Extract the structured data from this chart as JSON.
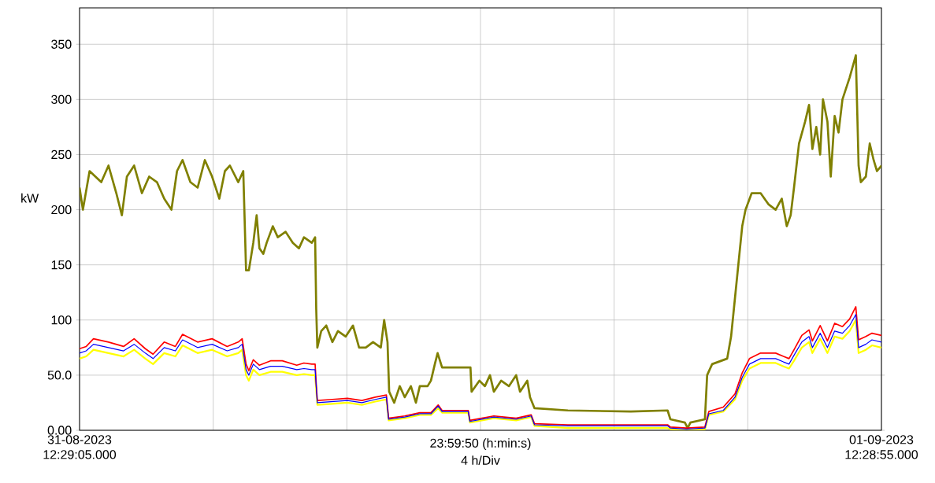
{
  "chart_data": {
    "type": "line",
    "ylabel": "kW",
    "xlabel": "4 h/Div",
    "xlim": [
      "2023-08-31T12:29",
      "2023-09-01T12:29"
    ],
    "xticks": [
      {
        "value": "2023-08-31T12:29",
        "label": "31-08-2023 12:29:05.000"
      },
      {
        "value": "2023-08-31T16:29",
        "label": null
      },
      {
        "value": "2023-08-31T20:29",
        "label": null
      },
      {
        "value": "2023-09-01T00:29",
        "label": "23:59:50 (h:min:s)"
      },
      {
        "value": "2023-09-01T04:29",
        "label": null
      },
      {
        "value": "2023-09-01T08:29",
        "label": null
      },
      {
        "value": "2023-09-01T12:29",
        "label": "01-09-2023 12:28:55.000"
      }
    ],
    "ylim": [
      0,
      383
    ],
    "yticks": [
      {
        "value": 0,
        "label": "0.00"
      },
      {
        "value": 50,
        "label": "50.0"
      },
      {
        "value": 100,
        "label": "100"
      },
      {
        "value": 150,
        "label": "150"
      },
      {
        "value": 200,
        "label": "200"
      },
      {
        "value": 250,
        "label": "250"
      },
      {
        "value": 300,
        "label": "300"
      },
      {
        "value": 350,
        "label": "350"
      }
    ],
    "grid": true,
    "marker": "none",
    "line_style": "solid",
    "x": [
      "2023-08-31T12:29",
      "2023-08-31T12:41",
      "2023-08-31T12:54",
      "2023-08-31T13:21",
      "2023-08-31T13:48",
      "2023-08-31T14:07",
      "2023-08-31T14:27",
      "2023-08-31T14:41",
      "2023-08-31T15:01",
      "2023-08-31T15:21",
      "2023-08-31T15:34",
      "2023-08-31T16:01",
      "2023-08-31T16:27",
      "2023-08-31T16:54",
      "2023-08-31T17:14",
      "2023-08-31T17:21",
      "2023-08-31T17:28",
      "2023-08-31T17:33",
      "2023-08-31T17:41",
      "2023-08-31T17:52",
      "2023-08-31T18:12",
      "2023-08-31T18:33",
      "2023-08-31T18:59",
      "2023-08-31T19:12",
      "2023-08-31T19:26",
      "2023-08-31T19:32",
      "2023-08-31T19:34",
      "2023-08-31T19:36",
      "2023-08-31T20:03",
      "2023-08-31T20:30",
      "2023-08-31T20:56",
      "2023-08-31T21:20",
      "2023-08-31T21:40",
      "2023-08-31T21:44",
      "2023-08-31T22:13",
      "2023-08-31T22:40",
      "2023-08-31T23:00",
      "2023-08-31T23:13",
      "2023-08-31T23:20",
      "2023-09-01T00:07",
      "2023-09-01T00:10",
      "2023-09-01T00:53",
      "2023-09-01T01:33",
      "2023-09-01T02:00",
      "2023-09-01T02:06",
      "2023-09-01T03:06",
      "2023-09-01T04:59",
      "2023-09-01T06:05",
      "2023-09-01T06:10",
      "2023-09-01T06:39",
      "2023-09-01T07:12",
      "2023-09-01T07:19",
      "2023-09-01T07:45",
      "2023-09-01T08:06",
      "2023-09-01T08:19",
      "2023-09-01T08:32",
      "2023-09-01T08:52",
      "2023-09-01T09:19",
      "2023-09-01T09:33",
      "2023-09-01T09:43",
      "2023-09-01T09:52",
      "2023-09-01T10:06",
      "2023-09-01T10:19",
      "2023-09-01T10:25",
      "2023-09-01T10:39",
      "2023-09-01T10:52",
      "2023-09-01T11:05",
      "2023-09-01T11:19",
      "2023-09-01T11:32",
      "2023-09-01T11:43",
      "2023-09-01T11:48",
      "2023-09-01T12:01",
      "2023-09-01T12:12",
      "2023-09-01T12:29"
    ],
    "series": [
      {
        "color": "#808000",
        "x": [
          "2023-08-31T12:29",
          "2023-08-31T12:35",
          "2023-08-31T12:47",
          "2023-08-31T13:08",
          "2023-08-31T13:21",
          "2023-08-31T13:35",
          "2023-08-31T13:45",
          "2023-08-31T13:54",
          "2023-08-31T14:07",
          "2023-08-31T14:21",
          "2023-08-31T14:34",
          "2023-08-31T14:48",
          "2023-08-31T15:01",
          "2023-08-31T15:14",
          "2023-08-31T15:24",
          "2023-08-31T15:34",
          "2023-08-31T15:48",
          "2023-08-31T16:01",
          "2023-08-31T16:14",
          "2023-08-31T16:27",
          "2023-08-31T16:40",
          "2023-08-31T16:50",
          "2023-08-31T16:59",
          "2023-08-31T17:14",
          "2023-08-31T17:23",
          "2023-08-31T17:28",
          "2023-08-31T17:33",
          "2023-08-31T17:41",
          "2023-08-31T17:47",
          "2023-08-31T17:52",
          "2023-08-31T17:59",
          "2023-08-31T18:05",
          "2023-08-31T18:16",
          "2023-08-31T18:25",
          "2023-08-31T18:39",
          "2023-08-31T18:52",
          "2023-08-31T19:03",
          "2023-08-31T19:12",
          "2023-08-31T19:26",
          "2023-08-31T19:32",
          "2023-08-31T19:34",
          "2023-08-31T19:36",
          "2023-08-31T19:43",
          "2023-08-31T19:52",
          "2023-08-31T20:03",
          "2023-08-31T20:13",
          "2023-08-31T20:27",
          "2023-08-31T20:40",
          "2023-08-31T20:51",
          "2023-08-31T21:03",
          "2023-08-31T21:16",
          "2023-08-31T21:30",
          "2023-08-31T21:36",
          "2023-08-31T21:42",
          "2023-08-31T21:45",
          "2023-08-31T21:54",
          "2023-08-31T22:04",
          "2023-08-31T22:13",
          "2023-08-31T22:24",
          "2023-08-31T22:33",
          "2023-08-31T22:40",
          "2023-08-31T22:54",
          "2023-08-31T23:00",
          "2023-08-31T23:07",
          "2023-08-31T23:12",
          "2023-08-31T23:20",
          "2023-09-01T00:11",
          "2023-09-01T00:13",
          "2023-09-01T00:27",
          "2023-09-01T00:37",
          "2023-09-01T00:46",
          "2023-09-01T00:53",
          "2023-09-01T01:06",
          "2023-09-01T01:20",
          "2023-09-01T01:33",
          "2023-09-01T01:40",
          "2023-09-01T01:53",
          "2023-09-01T01:58",
          "2023-09-01T02:06",
          "2023-09-01T03:06",
          "2023-09-01T04:59",
          "2023-09-01T06:05",
          "2023-09-01T06:10",
          "2023-09-01T06:36",
          "2023-09-01T06:41",
          "2023-09-01T06:46",
          "2023-09-01T07:12",
          "2023-09-01T07:16",
          "2023-09-01T07:25",
          "2023-09-01T07:52",
          "2023-09-01T07:59",
          "2023-09-01T08:06",
          "2023-09-01T08:12",
          "2023-09-01T08:19",
          "2023-09-01T08:25",
          "2023-09-01T08:36",
          "2023-09-01T08:52",
          "2023-09-01T09:06",
          "2023-09-01T09:19",
          "2023-09-01T09:30",
          "2023-09-01T09:39",
          "2023-09-01T09:46",
          "2023-09-01T09:52",
          "2023-09-01T10:01",
          "2023-09-01T10:12",
          "2023-09-01T10:19",
          "2023-09-01T10:25",
          "2023-09-01T10:32",
          "2023-09-01T10:39",
          "2023-09-01T10:44",
          "2023-09-01T10:52",
          "2023-09-01T10:58",
          "2023-09-01T11:05",
          "2023-09-01T11:12",
          "2023-09-01T11:19",
          "2023-09-01T11:32",
          "2023-09-01T11:43",
          "2023-09-01T11:45",
          "2023-09-01T11:48",
          "2023-09-01T11:52",
          "2023-09-01T12:01",
          "2023-09-01T12:08",
          "2023-09-01T12:15",
          "2023-09-01T12:21",
          "2023-09-01T12:29"
        ],
        "values": [
          220,
          200,
          235,
          225,
          240,
          215,
          195,
          230,
          240,
          215,
          230,
          225,
          210,
          200,
          235,
          245,
          225,
          220,
          245,
          230,
          210,
          235,
          240,
          225,
          235,
          145,
          145,
          170,
          195,
          165,
          160,
          170,
          185,
          175,
          180,
          170,
          165,
          175,
          170,
          175,
          110,
          75,
          90,
          95,
          80,
          90,
          85,
          95,
          75,
          75,
          80,
          75,
          100,
          80,
          35,
          25,
          40,
          30,
          40,
          25,
          40,
          40,
          45,
          60,
          70,
          57,
          57,
          35,
          45,
          40,
          50,
          35,
          45,
          40,
          50,
          35,
          45,
          30,
          20,
          18,
          17,
          18,
          10,
          7,
          2,
          7,
          10,
          50,
          60,
          65,
          85,
          120,
          150,
          185,
          200,
          215,
          215,
          205,
          200,
          210,
          185,
          195,
          220,
          260,
          280,
          295,
          255,
          275,
          250,
          300,
          280,
          230,
          285,
          270,
          300,
          320,
          340,
          300,
          240,
          225,
          230,
          260,
          245,
          235,
          240
        ]
      },
      {
        "color": "#ffff00",
        "values": [
          65,
          67,
          73,
          70,
          67,
          73,
          65,
          60,
          70,
          67,
          77,
          70,
          73,
          67,
          70,
          73,
          50,
          45,
          55,
          50,
          53,
          53,
          50,
          51,
          50,
          50,
          37,
          23,
          24,
          25,
          23,
          26,
          28,
          9,
          11,
          14,
          14,
          20,
          16,
          16,
          7,
          11,
          9,
          12,
          4,
          2,
          2,
          2,
          1,
          0,
          1,
          14,
          17,
          28,
          45,
          56,
          61,
          61,
          58,
          56,
          63,
          75,
          80,
          70,
          83,
          70,
          85,
          83,
          90,
          100,
          70,
          73,
          77,
          75
        ]
      },
      {
        "color": "#ff0000",
        "values": [
          74,
          76,
          83,
          80,
          76,
          83,
          74,
          69,
          80,
          76,
          87,
          80,
          83,
          76,
          80,
          83,
          60,
          54,
          64,
          59,
          63,
          63,
          59,
          61,
          60,
          60,
          42,
          27,
          28,
          29,
          27,
          30,
          32,
          11,
          13,
          16,
          16,
          23,
          18,
          18,
          9,
          13,
          11,
          14,
          6,
          5,
          5,
          5,
          3,
          2,
          3,
          17,
          21,
          33,
          52,
          65,
          70,
          70,
          67,
          65,
          73,
          86,
          91,
          81,
          95,
          81,
          97,
          94,
          101,
          112,
          82,
          85,
          88,
          86
        ]
      },
      {
        "color": "#0000ff",
        "values": [
          70,
          72,
          78,
          75,
          72,
          78,
          70,
          65,
          75,
          72,
          82,
          75,
          78,
          72,
          75,
          78,
          55,
          50,
          60,
          55,
          58,
          58,
          55,
          56,
          55,
          55,
          40,
          25,
          26,
          27,
          25,
          28,
          30,
          10,
          12,
          15,
          15,
          22,
          17,
          17,
          8,
          12,
          10,
          13,
          5,
          4,
          4,
          4,
          2,
          1,
          2,
          15,
          18,
          30,
          48,
          60,
          65,
          65,
          62,
          60,
          68,
          80,
          85,
          75,
          88,
          75,
          90,
          88,
          95,
          105,
          75,
          78,
          82,
          80
        ]
      }
    ]
  }
}
